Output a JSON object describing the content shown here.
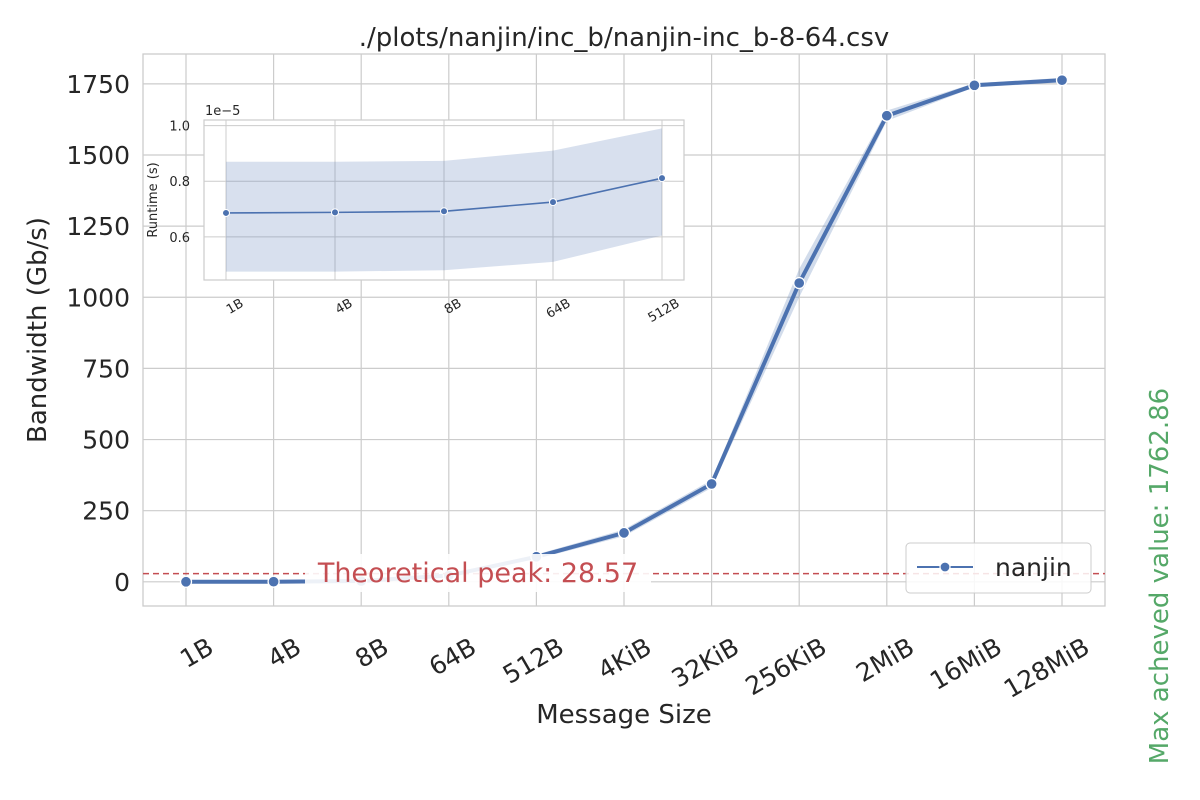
{
  "chart_data": [
    {
      "type": "line",
      "title": "./plots/nanjin/inc_b/nanjin-inc_b-8-64.csv",
      "xlabel": "Message Size",
      "ylabel": "Bandwidth (Gb/s)",
      "categories": [
        "1B",
        "4B",
        "8B",
        "64B",
        "512B",
        "4KiB",
        "32KiB",
        "256KiB",
        "2MiB",
        "16MiB",
        "128MiB"
      ],
      "yticks": [
        0,
        250,
        500,
        750,
        1000,
        1250,
        1500,
        1750
      ],
      "ylim": [
        -85,
        1855
      ],
      "grid": true,
      "series": [
        {
          "name": "nanjin",
          "values": [
            0.1,
            0.4,
            2.7,
            22,
            88,
            172,
            344,
            1050,
            1638,
            1745,
            1763
          ],
          "lower": [
            0.1,
            0.4,
            2.5,
            19,
            80,
            160,
            330,
            1000,
            1620,
            1738,
            1755
          ],
          "upper": [
            0.1,
            0.4,
            2.9,
            25,
            96,
            184,
            358,
            1100,
            1656,
            1752,
            1771
          ]
        }
      ],
      "peak_line": {
        "value": 28.57,
        "label": "Theoretical peak: 28.57",
        "color": "#c44e52"
      },
      "legend": {
        "position": "lower-right",
        "entries": [
          "nanjin"
        ]
      },
      "side_note": {
        "text": "Max acheved value: 1762.86",
        "color": "#55a868"
      }
    },
    {
      "type": "line",
      "ylabel": "Runtime (s)",
      "categories": [
        "1B",
        "4B",
        "8B",
        "64B",
        "512B"
      ],
      "yticks": [
        "0.6",
        "0.8",
        "1.0"
      ],
      "ytick_values": [
        0.6,
        0.8,
        1.0
      ],
      "offset_label": "1e−5",
      "ylim": [
        0.445,
        1.02
      ],
      "grid": true,
      "series": [
        {
          "values": [
            0.686,
            0.688,
            0.692,
            0.725,
            0.811
          ],
          "lower": [
            0.475,
            0.475,
            0.48,
            0.51,
            0.605
          ],
          "upper": [
            0.87,
            0.87,
            0.873,
            0.91,
            0.99
          ]
        }
      ]
    }
  ],
  "colors": {
    "series": "#4c72b0",
    "grid": "#cccccc",
    "text": "#262626"
  }
}
